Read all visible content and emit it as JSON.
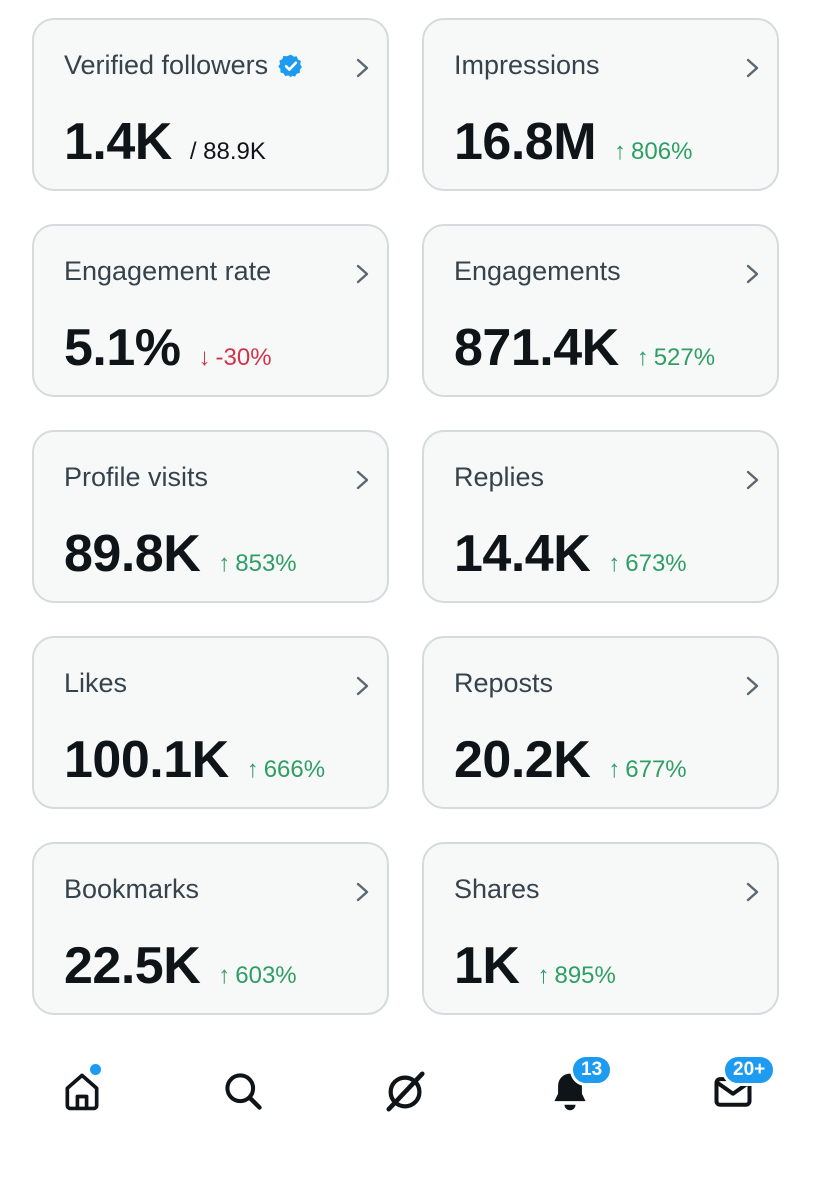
{
  "cards": [
    {
      "title": "Verified followers",
      "value": "1.4K",
      "total": "/ 88.9K"
    },
    {
      "title": "Impressions",
      "value": "16.8M",
      "change": "806%",
      "direction": "up"
    },
    {
      "title": "Engagement rate",
      "value": "5.1%",
      "change": "-30%",
      "direction": "down"
    },
    {
      "title": "Engagements",
      "value": "871.4K",
      "change": "527%",
      "direction": "up"
    },
    {
      "title": "Profile visits",
      "value": "89.8K",
      "change": "853%",
      "direction": "up"
    },
    {
      "title": "Replies",
      "value": "14.4K",
      "change": "673%",
      "direction": "up"
    },
    {
      "title": "Likes",
      "value": "100.1K",
      "change": "666%",
      "direction": "up"
    },
    {
      "title": "Reposts",
      "value": "20.2K",
      "change": "677%",
      "direction": "up"
    },
    {
      "title": "Bookmarks",
      "value": "22.5K",
      "change": "603%",
      "direction": "up"
    },
    {
      "title": "Shares",
      "value": "1K",
      "change": "895%",
      "direction": "up"
    }
  ],
  "arrows": {
    "up": "↑",
    "down": "↓"
  },
  "nav": {
    "notifications_badge": "13",
    "messages_badge": "20+"
  },
  "colors": {
    "up": "#2f9e64",
    "down": "#d1344a",
    "accent": "#1d9bf0"
  }
}
